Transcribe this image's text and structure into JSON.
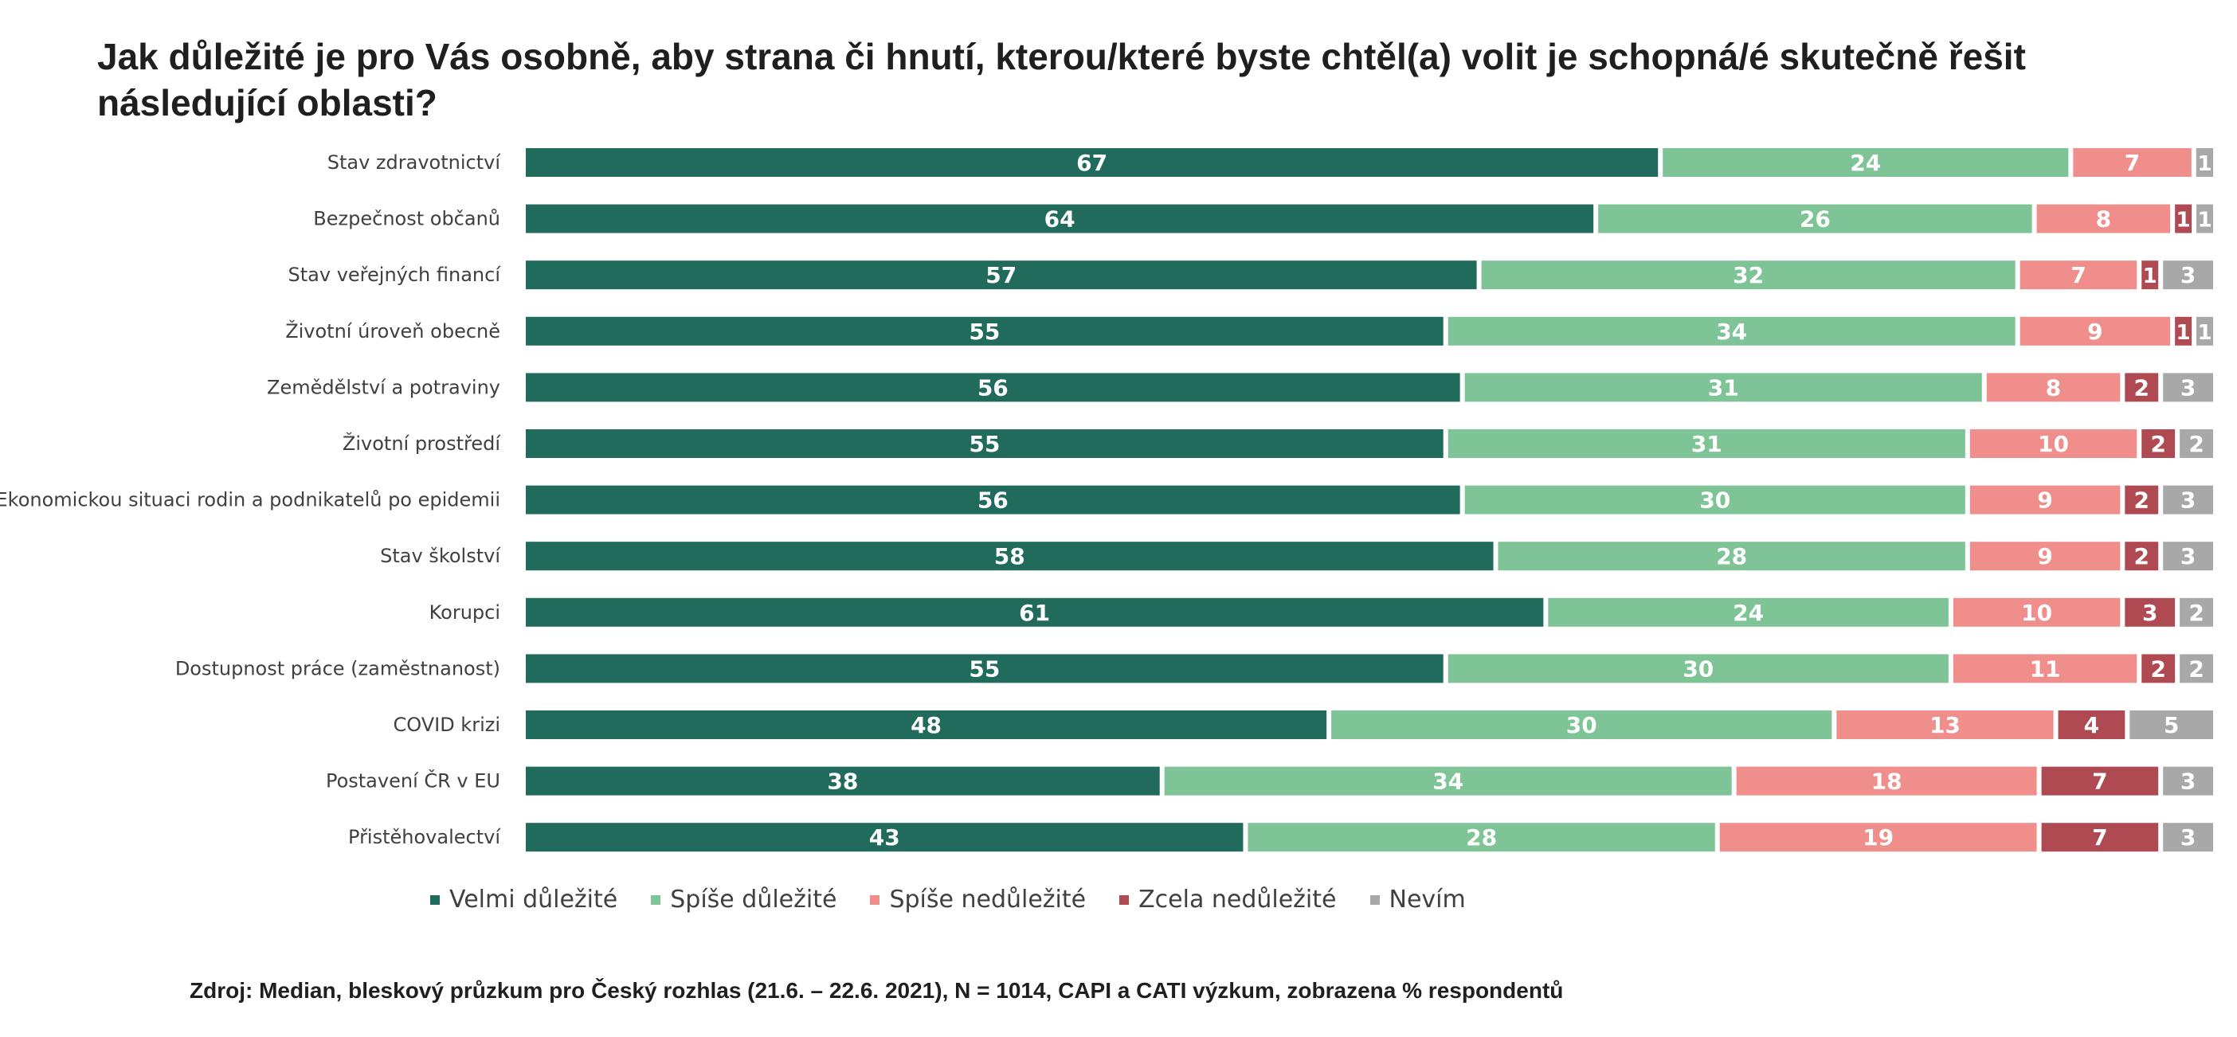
{
  "chart_data": {
    "type": "bar",
    "orientation": "horizontal-stacked-100",
    "title": "Jak důležité je pro Vás osobně, aby strana či hnutí, kterou/které byste chtěl(a) volit je schopná/é skutečně řešit následující oblasti?",
    "categories": [
      "Stav zdravotnictví",
      "Bezpečnost občanů",
      "Stav veřejných financí",
      "Životní úroveň obecně",
      "Zemědělství a potraviny",
      "Životní prostředí",
      "Ekonomickou situaci rodin a podnikatelů po epidemii",
      "Stav školství",
      "Korupci",
      "Dostupnost práce (zaměstnanost)",
      "COVID krizi",
      "Postavení ČR v EU",
      "Přistěhovalectví"
    ],
    "series": [
      {
        "name": "Velmi důležité",
        "color": "#216b5c",
        "values": [
          67,
          64,
          57,
          55,
          56,
          55,
          56,
          58,
          61,
          55,
          48,
          38,
          43
        ]
      },
      {
        "name": "Spíše důležité",
        "color": "#7ec497",
        "values": [
          24,
          26,
          32,
          34,
          31,
          31,
          30,
          28,
          24,
          30,
          30,
          34,
          28
        ]
      },
      {
        "name": "Spíše nedůležité",
        "color": "#ef8e8b",
        "values": [
          7,
          8,
          7,
          9,
          8,
          10,
          9,
          9,
          10,
          11,
          13,
          18,
          19
        ]
      },
      {
        "name": "Zcela nedůležité",
        "color": "#b04a52",
        "values": [
          0,
          1,
          1,
          1,
          2,
          2,
          2,
          2,
          3,
          2,
          4,
          7,
          7
        ]
      },
      {
        "name": "Nevím",
        "color": "#a8a8a8",
        "values": [
          1,
          1,
          3,
          1,
          3,
          2,
          3,
          3,
          2,
          2,
          5,
          3,
          3
        ]
      }
    ],
    "legend_position": "bottom",
    "grid": false
  },
  "source": "Zdroj: Median, bleskový průzkum pro Český rozhlas (21.6. – 22.6. 2021), N = 1014, CAPI a CATI výzkum, zobrazena % respondentů"
}
